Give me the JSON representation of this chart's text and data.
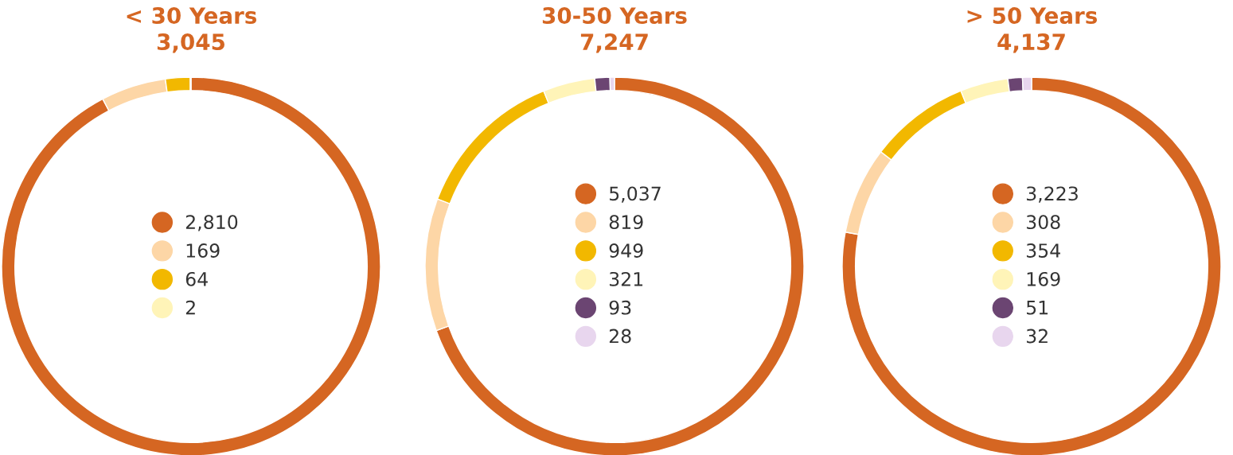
{
  "chart_data": [
    {
      "type": "donut",
      "title": "< 30 Years",
      "subtitle": "3,045",
      "categories": [
        "2,810",
        "169",
        "64",
        "2"
      ],
      "values": [
        2810,
        169,
        64,
        2
      ],
      "colors": [
        "#d56622",
        "#fdd6a6",
        "#f2b800",
        "#fff4b8"
      ],
      "legend": "center"
    },
    {
      "type": "donut",
      "title": "30-50 Years",
      "subtitle": "7,247",
      "categories": [
        "5,037",
        "819",
        "949",
        "321",
        "93",
        "28"
      ],
      "values": [
        5037,
        819,
        949,
        321,
        93,
        28
      ],
      "colors": [
        "#d56622",
        "#fdd6a6",
        "#f2b800",
        "#fff4b8",
        "#6b4572",
        "#e8d6ee"
      ],
      "legend": "center"
    },
    {
      "type": "donut",
      "title": "> 50 Years",
      "subtitle": "4,137",
      "categories": [
        "3,223",
        "308",
        "354",
        "169",
        "51",
        "32"
      ],
      "values": [
        3223,
        308,
        354,
        169,
        51,
        32
      ],
      "colors": [
        "#d56622",
        "#fdd6a6",
        "#f2b800",
        "#fff4b8",
        "#6b4572",
        "#e8d6ee"
      ],
      "legend": "center"
    }
  ]
}
